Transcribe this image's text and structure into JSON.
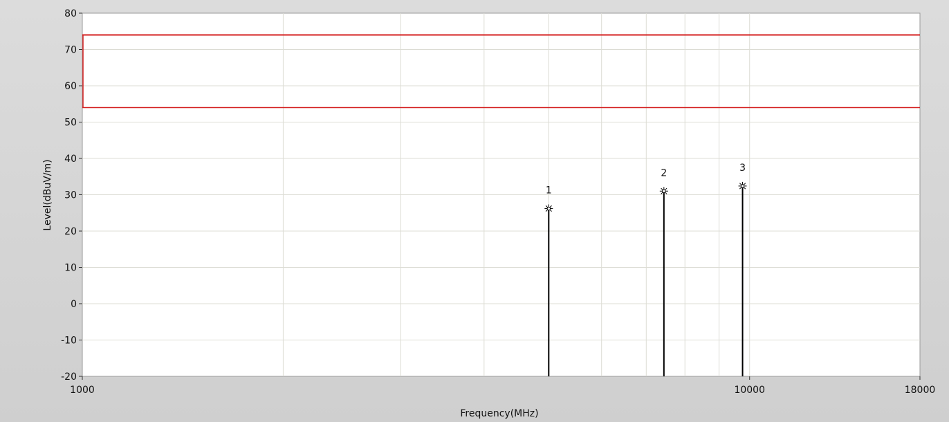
{
  "chart_data": {
    "type": "line",
    "title": "",
    "xlabel": "Frequency(MHz)",
    "ylabel": "Level(dBuV/m)",
    "x_scale": "log",
    "xlim": [
      1000,
      18000
    ],
    "ylim": [
      -20,
      80
    ],
    "x_tick_labels": [
      "1000",
      "10000",
      "18000"
    ],
    "y_ticks": [
      -20,
      -10,
      0,
      10,
      20,
      30,
      40,
      50,
      60,
      70,
      80
    ],
    "grid": true,
    "colors": {
      "plot_background": "#ffffff",
      "frame": "#d4d4d4",
      "grid": "#dcdcd4",
      "limit_line": "#d42020",
      "marker": "#000000"
    },
    "limit_lines": [
      {
        "level": 74,
        "x": [
          1000,
          18000
        ]
      },
      {
        "level": 54,
        "x": [
          1000,
          18000
        ]
      }
    ],
    "markers": [
      {
        "label": "1",
        "x": 5000,
        "y": 26.2
      },
      {
        "label": "2",
        "x": 7440,
        "y": 31.0
      },
      {
        "label": "3",
        "x": 9760,
        "y": 32.4
      }
    ]
  }
}
